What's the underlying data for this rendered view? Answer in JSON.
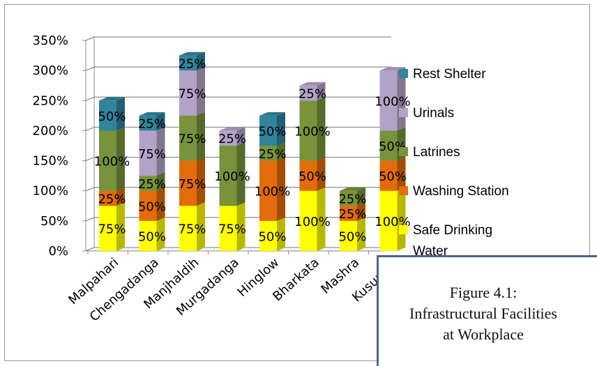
{
  "chart_data": {
    "type": "bar",
    "stacked": true,
    "three_d": true,
    "title": "",
    "xlabel": "",
    "ylabel": "",
    "ylim": [
      0,
      350
    ],
    "y_ticks": [
      "0%",
      "50%",
      "100%",
      "150%",
      "200%",
      "250%",
      "300%",
      "350%"
    ],
    "grid": true,
    "legend_position": "right",
    "categories": [
      "Malpahari",
      "Chengadanga",
      "Manjhaldih",
      "Murgadanga",
      "Hinglow",
      "Bharkata",
      "Mashra",
      "Kusumba"
    ],
    "series": [
      {
        "name": "Safe Drinking Water",
        "color": "#ffff00",
        "values": [
          75,
          50,
          75,
          75,
          50,
          100,
          50,
          100
        ],
        "labels": [
          "75%",
          "50%",
          "75%",
          "75%",
          "50%",
          "100%",
          "50%",
          "100%"
        ]
      },
      {
        "name": "Washing Station",
        "color": "#e36c0a",
        "values": [
          25,
          50,
          75,
          0,
          100,
          50,
          25,
          50
        ],
        "labels": [
          "25%",
          "50%",
          "75%",
          "",
          "100%",
          "50%",
          "25%",
          "50%"
        ]
      },
      {
        "name": "Latrines",
        "color": "#77933c",
        "values": [
          100,
          25,
          75,
          100,
          25,
          100,
          25,
          50
        ],
        "labels": [
          "100%",
          "25%",
          "75%",
          "100%",
          "25%",
          "100%",
          "25%",
          "50%"
        ]
      },
      {
        "name": "Urinals",
        "color": "#b3a2c7",
        "values": [
          0,
          75,
          75,
          25,
          0,
          25,
          0,
          100
        ],
        "labels": [
          "",
          "75%",
          "75%",
          "25%",
          "",
          "25%",
          "",
          "100%"
        ]
      },
      {
        "name": "Rest Shelter",
        "color": "#31849b",
        "values": [
          50,
          25,
          25,
          0,
          50,
          0,
          0,
          0
        ],
        "labels": [
          "50%",
          "25%",
          "25%",
          "",
          "50%",
          "",
          "",
          ""
        ]
      }
    ]
  },
  "caption": {
    "line1": "Figure 4.1:",
    "line2": "Infrastructural Facilities",
    "line3": "at Workplace"
  }
}
